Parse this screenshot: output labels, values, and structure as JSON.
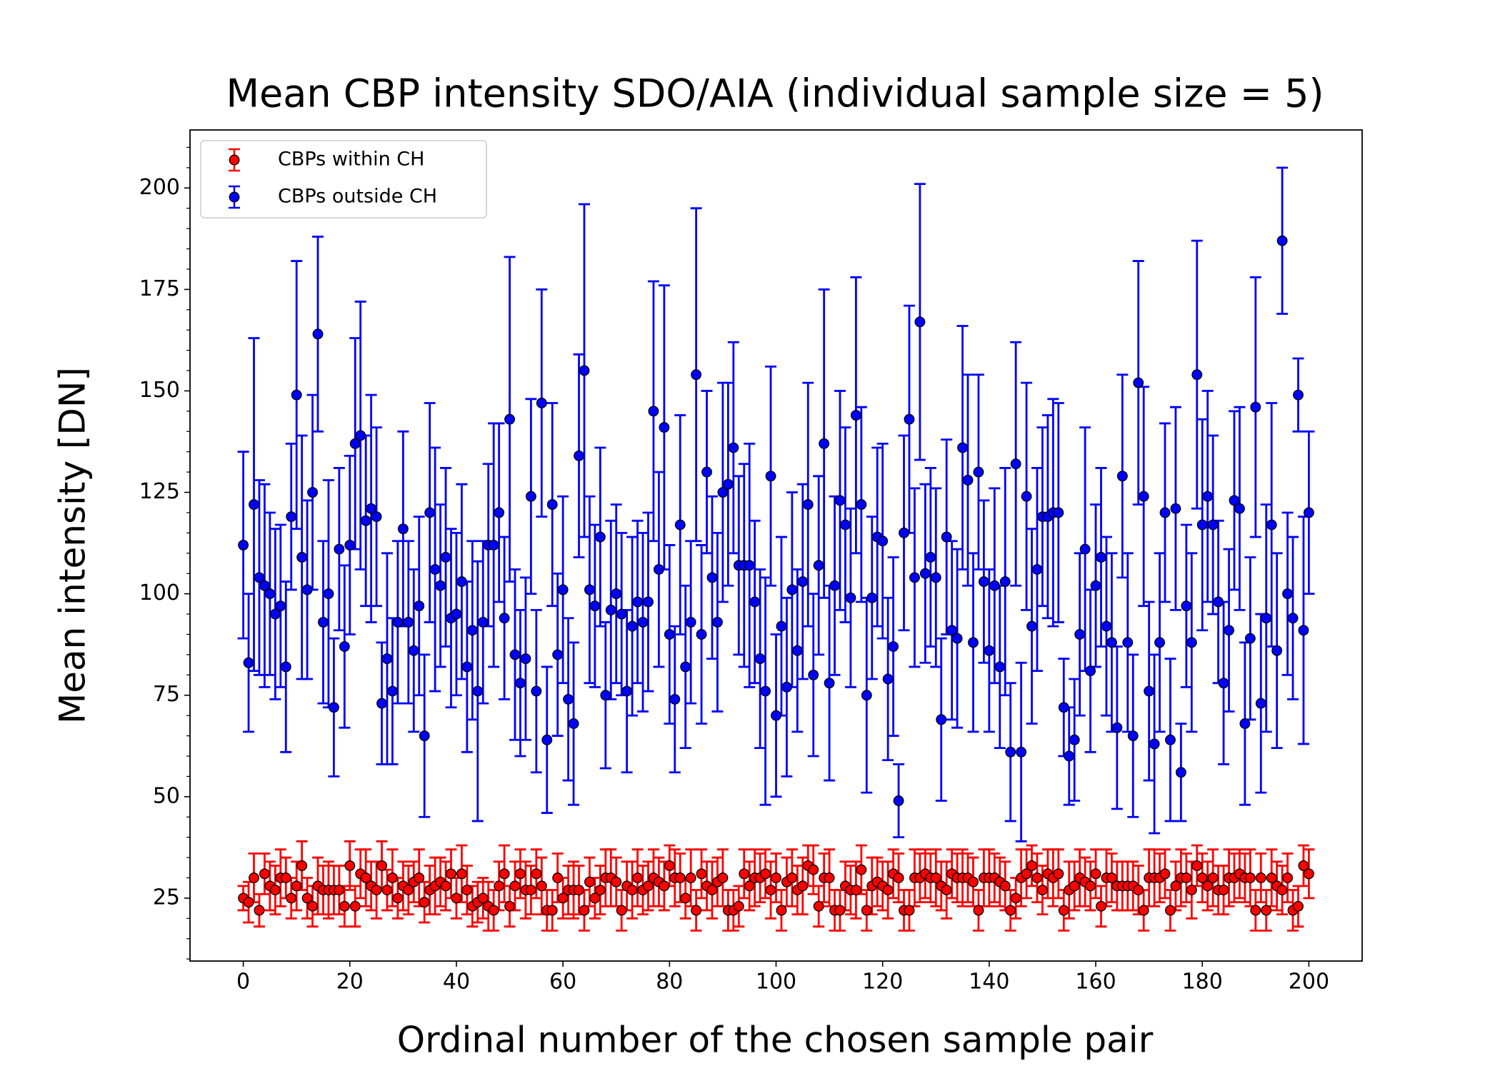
{
  "chart_data": {
    "type": "scatter",
    "title": "Mean CBP intensity SDO/AIA (individual sample size = 5)",
    "x_label": "Ordinal number of the chosen sample pair",
    "y_label": "Mean intensity [DN]",
    "xlim": [
      -10,
      210
    ],
    "ylim": [
      9.5,
      214.3
    ],
    "xticks": [
      0,
      20,
      40,
      60,
      80,
      100,
      120,
      140,
      160,
      180,
      200
    ],
    "yticks": [
      25,
      50,
      75,
      100,
      125,
      150,
      175,
      200
    ],
    "yminorticks": [
      10,
      15,
      20,
      30,
      35,
      40,
      45,
      55,
      60,
      65,
      70,
      80,
      85,
      90,
      95,
      105,
      110,
      115,
      120,
      130,
      135,
      140,
      145,
      155,
      160,
      165,
      170,
      180,
      185,
      190,
      195,
      205,
      210
    ],
    "legend": "upper left",
    "grid": false,
    "x": [
      0,
      1,
      2,
      3,
      4,
      5,
      6,
      7,
      8,
      9,
      10,
      11,
      12,
      13,
      14,
      15,
      16,
      17,
      18,
      19,
      20,
      21,
      22,
      23,
      24,
      25,
      26,
      27,
      28,
      29,
      30,
      31,
      32,
      33,
      34,
      35,
      36,
      37,
      38,
      39,
      40,
      41,
      42,
      43,
      44,
      45,
      46,
      47,
      48,
      49,
      50,
      51,
      52,
      53,
      54,
      55,
      56,
      57,
      58,
      59,
      60,
      61,
      62,
      63,
      64,
      65,
      66,
      67,
      68,
      69,
      70,
      71,
      72,
      73,
      74,
      75,
      76,
      77,
      78,
      79,
      80,
      81,
      82,
      83,
      84,
      85,
      86,
      87,
      88,
      89,
      90,
      91,
      92,
      93,
      94,
      95,
      96,
      97,
      98,
      99,
      100,
      101,
      102,
      103,
      104,
      105,
      106,
      107,
      108,
      109,
      110,
      111,
      112,
      113,
      114,
      115,
      116,
      117,
      118,
      119,
      120,
      121,
      122,
      123,
      124,
      125,
      126,
      127,
      128,
      129,
      130,
      131,
      132,
      133,
      134,
      135,
      136,
      137,
      138,
      139,
      140,
      141,
      142,
      143,
      144,
      145,
      146,
      147,
      148,
      149,
      150,
      151,
      152,
      153,
      154,
      155,
      156,
      157,
      158,
      159,
      160,
      161,
      162,
      163,
      164,
      165,
      166,
      167,
      168,
      169,
      170,
      171,
      172,
      173,
      174,
      175,
      176,
      177,
      178,
      179,
      180,
      181,
      182,
      183,
      184,
      185,
      186,
      187,
      188,
      189,
      190,
      191,
      192,
      193,
      194,
      195,
      196,
      197,
      198,
      199,
      200
    ],
    "series": [
      {
        "name": "CBPs within CH",
        "color": "#ff0000",
        "values": [
          25,
          24,
          30,
          22,
          31,
          28,
          27,
          30,
          30,
          25,
          28,
          33,
          25,
          23,
          28,
          27,
          27,
          27,
          27,
          23,
          33,
          23,
          31,
          30,
          28,
          27,
          33,
          27,
          30,
          25,
          28,
          27,
          29,
          30,
          24,
          27,
          28,
          29,
          28,
          31,
          25,
          31,
          27,
          23,
          24,
          25,
          23,
          22,
          28,
          31,
          23,
          28,
          31,
          27,
          27,
          31,
          28,
          22,
          22,
          30,
          25,
          27,
          27,
          27,
          22,
          29,
          25,
          27,
          30,
          30,
          29,
          22,
          28,
          27,
          30,
          27,
          28,
          30,
          29,
          28,
          33,
          30,
          30,
          25,
          30,
          22,
          31,
          28,
          27,
          29,
          30,
          22,
          22,
          23,
          31,
          28,
          30,
          30,
          31,
          27,
          30,
          22,
          29,
          30,
          27,
          28,
          33,
          32,
          23,
          30,
          30,
          22,
          22,
          28,
          27,
          27,
          32,
          22,
          28,
          29,
          28,
          27,
          31,
          30,
          22,
          22,
          30,
          30,
          31,
          30,
          30,
          28,
          27,
          31,
          30,
          30,
          30,
          29,
          22,
          30,
          30,
          30,
          29,
          28,
          22,
          25,
          30,
          31,
          33,
          30,
          27,
          31,
          30,
          31,
          22,
          27,
          28,
          30,
          29,
          28,
          31,
          23,
          30,
          30,
          28,
          28,
          28,
          28,
          27,
          22,
          30,
          30,
          30,
          31,
          22,
          28,
          30,
          30,
          27,
          33,
          30,
          28,
          30,
          27,
          27,
          30,
          30,
          31,
          30,
          30,
          22,
          30,
          22,
          30,
          28,
          27,
          30,
          22,
          23,
          33,
          31
        ],
        "errors": [
          3,
          5,
          6,
          4,
          5,
          6,
          6,
          7,
          5,
          5,
          6,
          6,
          5,
          5,
          7,
          6,
          7,
          6,
          6,
          5,
          6,
          5,
          6,
          7,
          6,
          7,
          6,
          5,
          7,
          5,
          6,
          6,
          5,
          7,
          5,
          6,
          7,
          6,
          6,
          6,
          5,
          7,
          6,
          5,
          5,
          5,
          6,
          5,
          6,
          7,
          5,
          6,
          6,
          7,
          6,
          6,
          7,
          5,
          5,
          6,
          5,
          6,
          7,
          6,
          5,
          6,
          5,
          6,
          7,
          7,
          6,
          5,
          6,
          7,
          7,
          6,
          6,
          7,
          6,
          6,
          5,
          7,
          6,
          5,
          7,
          5,
          6,
          6,
          7,
          6,
          7,
          5,
          5,
          5,
          6,
          6,
          7,
          6,
          6,
          7,
          6,
          5,
          6,
          7,
          6,
          7,
          5,
          6,
          5,
          6,
          7,
          5,
          5,
          6,
          6,
          7,
          6,
          5,
          7,
          6,
          6,
          7,
          6,
          6,
          5,
          5,
          7,
          6,
          6,
          6,
          7,
          6,
          7,
          6,
          6,
          7,
          6,
          6,
          5,
          7,
          7,
          6,
          6,
          6,
          5,
          5,
          7,
          6,
          5,
          6,
          6,
          6,
          7,
          6,
          5,
          7,
          6,
          7,
          6,
          6,
          6,
          5,
          7,
          6,
          6,
          6,
          6,
          6,
          6,
          5,
          7,
          7,
          6,
          6,
          5,
          6,
          7,
          6,
          7,
          5,
          6,
          6,
          7,
          6,
          6,
          7,
          6,
          6,
          6,
          7,
          5,
          6,
          5,
          7,
          6,
          6,
          6,
          5,
          5,
          5,
          6
        ]
      },
      {
        "name": "CBPs outside CH",
        "color": "#0000ff",
        "values": [
          112,
          83,
          122,
          104,
          102,
          100,
          95,
          97,
          82,
          119,
          149,
          109,
          101,
          125,
          164,
          93,
          100,
          72,
          111,
          87,
          112,
          137,
          139,
          118,
          121,
          119,
          73,
          84,
          76,
          93,
          116,
          93,
          86,
          97,
          65,
          120,
          106,
          102,
          109,
          94,
          95,
          103,
          82,
          91,
          76,
          93,
          112,
          112,
          120,
          94,
          143,
          85,
          78,
          84,
          124,
          76,
          147,
          64,
          122,
          85,
          101,
          74,
          68,
          134,
          155,
          101,
          97,
          114,
          75,
          96,
          100,
          95,
          76,
          92,
          98,
          93,
          98,
          145,
          106,
          141,
          90,
          74,
          117,
          82,
          93,
          154,
          90,
          130,
          104,
          93,
          125,
          127,
          136,
          107,
          107,
          107,
          98,
          84,
          76,
          129,
          70,
          92,
          77,
          101,
          86,
          103,
          122,
          80,
          107,
          137,
          78,
          102,
          123,
          117,
          99,
          144,
          122,
          75,
          99,
          114,
          113,
          79,
          87,
          49,
          115,
          143,
          104,
          167,
          105,
          109,
          104,
          69,
          114,
          91,
          89,
          136,
          128,
          88,
          130,
          103,
          86,
          102,
          82,
          103,
          61,
          132,
          61,
          124,
          92,
          106,
          119,
          119,
          120,
          120,
          72,
          60,
          64,
          90,
          111,
          81,
          102,
          109,
          92,
          88,
          67,
          129,
          88,
          65,
          152,
          124,
          76,
          63,
          88,
          120,
          64,
          121,
          56,
          97,
          88,
          154,
          117,
          124,
          117,
          98,
          78,
          91,
          123,
          121,
          68,
          89,
          146,
          73,
          94,
          117,
          86,
          187,
          100,
          94,
          149,
          91,
          120
        ],
        "errors": [
          23,
          17,
          41,
          24,
          25,
          20,
          21,
          20,
          21,
          18,
          33,
          30,
          22,
          24,
          24,
          20,
          28,
          17,
          20,
          20,
          22,
          26,
          33,
          21,
          28,
          22,
          15,
          26,
          18,
          20,
          24,
          20,
          20,
          22,
          20,
          27,
          30,
          20,
          22,
          22,
          20,
          24,
          21,
          22,
          32,
          20,
          20,
          30,
          22,
          20,
          40,
          21,
          18,
          20,
          24,
          20,
          28,
          18,
          25,
          20,
          23,
          20,
          20,
          25,
          41,
          23,
          20,
          22,
          18,
          22,
          22,
          20,
          20,
          22,
          20,
          22,
          22,
          32,
          24,
          35,
          22,
          18,
          27,
          20,
          20,
          41,
          22,
          20,
          20,
          22,
          27,
          25,
          26,
          22,
          25,
          30,
          20,
          22,
          28,
          27,
          20,
          22,
          22,
          24,
          20,
          24,
          30,
          20,
          22,
          38,
          24,
          22,
          27,
          24,
          22,
          34,
          24,
          24,
          20,
          22,
          24,
          20,
          22,
          9,
          24,
          28,
          22,
          34,
          22,
          22,
          22,
          20,
          24,
          22,
          22,
          30,
          26,
          22,
          24,
          20,
          20,
          24,
          20,
          28,
          17,
          30,
          22,
          28,
          24,
          25,
          22,
          25,
          28,
          27,
          12,
          12,
          15,
          20,
          30,
          20,
          20,
          22,
          22,
          22,
          20,
          25,
          22,
          20,
          30,
          27,
          22,
          22,
          22,
          22,
          20,
          25,
          12,
          20,
          22,
          33,
          26,
          26,
          22,
          20,
          20,
          20,
          22,
          25,
          20,
          20,
          32,
          22,
          28,
          30,
          24,
          18,
          20,
          20,
          9,
          28,
          20
        ]
      }
    ]
  }
}
